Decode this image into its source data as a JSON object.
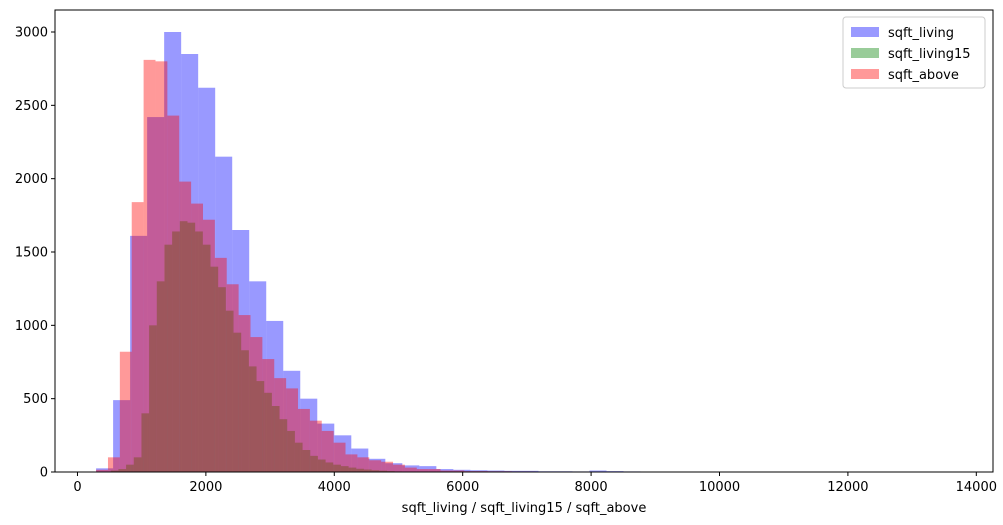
{
  "chart_data": {
    "type": "bar",
    "subtype": "overlaid-histogram",
    "title": "",
    "xlabel": "sqft_living / sqft_living15 / sqft_above",
    "ylabel": "",
    "xlim": [
      -350,
      14260
    ],
    "ylim": [
      0,
      3150
    ],
    "x_ticks": [
      0,
      2000,
      4000,
      6000,
      8000,
      10000,
      12000,
      14000
    ],
    "y_ticks": [
      0,
      500,
      1000,
      1500,
      2000,
      2500,
      3000
    ],
    "grid": false,
    "legend_position": "top-right",
    "series": [
      {
        "name": "sqft_living",
        "color": "#0000ff",
        "opacity": 0.4,
        "bin_start": 290,
        "bin_width": 265,
        "values": [
          25,
          490,
          1610,
          2420,
          3000,
          2850,
          2620,
          2150,
          1650,
          1300,
          1030,
          690,
          500,
          330,
          250,
          160,
          90,
          60,
          45,
          40,
          20,
          15,
          12,
          10,
          8,
          8,
          5,
          5,
          4,
          10,
          6,
          4,
          3,
          3,
          3,
          2,
          3,
          2,
          0,
          2,
          2,
          1,
          0,
          1,
          0,
          0,
          0,
          0,
          0,
          0,
          0
        ]
      },
      {
        "name": "sqft_living15",
        "color": "#008000",
        "opacity": 0.4,
        "bin_start": 399,
        "bin_width": 119.5,
        "values": [
          0,
          10,
          20,
          50,
          100,
          400,
          1000,
          1300,
          1550,
          1640,
          1710,
          1700,
          1640,
          1550,
          1400,
          1260,
          1100,
          950,
          830,
          720,
          620,
          540,
          450,
          360,
          280,
          200,
          150,
          110,
          85,
          65,
          50,
          40,
          30,
          22,
          17,
          12,
          9,
          6,
          4,
          3,
          2,
          2,
          1,
          1,
          1,
          1,
          0,
          0,
          0,
          0
        ]
      },
      {
        "name": "sqft_above",
        "color": "#ff0000",
        "opacity": 0.4,
        "bin_start": 290,
        "bin_width": 185,
        "values": [
          15,
          100,
          820,
          1840,
          2810,
          2800,
          2430,
          1980,
          1830,
          1720,
          1460,
          1280,
          1070,
          920,
          770,
          640,
          570,
          430,
          350,
          280,
          200,
          120,
          100,
          80,
          70,
          50,
          30,
          20,
          20,
          10,
          10,
          6,
          6,
          5,
          5,
          4,
          4,
          3,
          2,
          2,
          2,
          2,
          2,
          1,
          1,
          1,
          1,
          0,
          0,
          0
        ]
      }
    ]
  }
}
